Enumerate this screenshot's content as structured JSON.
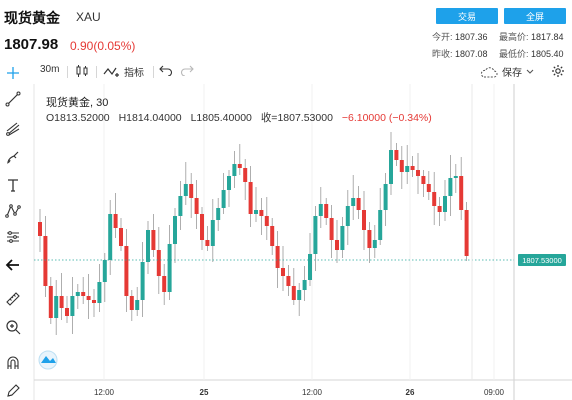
{
  "header": {
    "title": "现货黄金",
    "symbol": "XAU",
    "price": "1807.98",
    "change": "0.90(0.05%)",
    "trade_button": "交易",
    "fullscreen_button": "全屏"
  },
  "quote": {
    "open_label": "今开:",
    "open": "1807.36",
    "high_label": "最高价:",
    "high": "1817.84",
    "prev_label": "昨收:",
    "prev": "1807.08",
    "low_label": "最低价:",
    "low": "1805.40"
  },
  "toolbar": {
    "interval": "30m",
    "indicators_label": "指标",
    "save_label": "保存"
  },
  "legend": {
    "name": "现货黄金, 30",
    "open": "O1813.52000",
    "high": "H1814.04000",
    "low": "L1805.40000",
    "close": "收=1807.53000",
    "change": "−6.10000 (−0.34%)"
  },
  "last_price_tag": "1807.53000",
  "x_axis": {
    "ticks": [
      {
        "label": "12:00",
        "bold": false
      },
      {
        "label": "25",
        "bold": true
      },
      {
        "label": "12:00",
        "bold": false
      },
      {
        "label": "26",
        "bold": true
      },
      {
        "label": "09:00",
        "bold": false
      }
    ]
  },
  "colors": {
    "up": "#26a69a",
    "down": "#e53935",
    "accent": "#1ea1ea"
  },
  "chart_data": {
    "type": "candlestick",
    "interval": "30m",
    "last_price": 1807.53
  }
}
